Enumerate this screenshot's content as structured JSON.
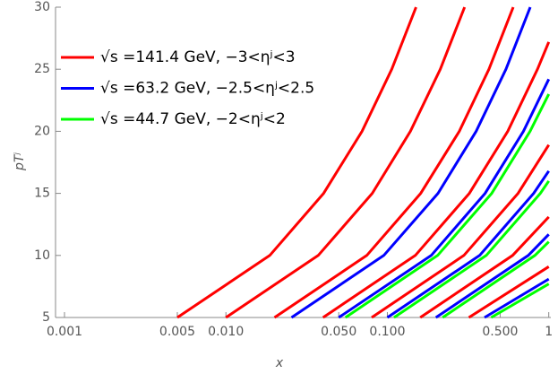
{
  "chart_data": {
    "type": "line",
    "x_label": "x",
    "y_label": "pTʲ",
    "log_x": true,
    "xlim": [
      0.00088,
      1.03
    ],
    "ylim": [
      5,
      30
    ],
    "xticks": [
      0.001,
      0.005,
      {
        "value": 0.01,
        "label": "0.010"
      },
      {
        "value": 0.05,
        "label": "0.050"
      },
      {
        "value": 0.1,
        "label": "0.100"
      },
      {
        "value": 0.5,
        "label": "0.500"
      },
      1
    ],
    "yticks": [
      5,
      10,
      15,
      20,
      25,
      30
    ],
    "legend": "upper-left",
    "series": [
      {
        "name": "√s =141.4 GeV, −3<ηʲ<3",
        "color": "#ff0000",
        "curves": [
          {
            "x": [
              0.005,
              0.0187,
              0.0403,
              0.0697,
              0.1065,
              0.1505
            ],
            "y": [
              5,
              10,
              15,
              20,
              25,
              30
            ]
          },
          {
            "x": [
              0.01,
              0.0373,
              0.0806,
              0.139,
              0.213,
              0.301
            ],
            "y": [
              5,
              10,
              15,
              20,
              25,
              30
            ]
          },
          {
            "x": [
              0.02,
              0.0746,
              0.161,
              0.279,
              0.426,
              0.602
            ],
            "y": [
              5,
              10,
              15,
              20,
              25,
              30
            ]
          },
          {
            "x": [
              0.04,
              0.149,
              0.322,
              0.557,
              0.852,
              1
            ],
            "y": [
              5,
              10,
              15,
              20,
              25,
              27.2
            ]
          },
          {
            "x": [
              0.08,
              0.298,
              0.645,
              1
            ],
            "y": [
              5,
              10,
              15,
              18.9
            ]
          },
          {
            "x": [
              0.16,
              0.597,
              1
            ],
            "y": [
              5,
              10,
              13.1
            ]
          },
          {
            "x": [
              0.32,
              1
            ],
            "y": [
              5,
              9.1
            ]
          }
        ]
      },
      {
        "name": "√s =63.2 GeV, −2.5<ηʲ<2.5",
        "color": "#0000ff",
        "curves": [
          {
            "x": [
              0.0255,
              0.0951,
              0.206,
              0.355,
              0.543,
              0.768
            ],
            "y": [
              5,
              10,
              15,
              20,
              25,
              30
            ]
          },
          {
            "x": [
              0.05,
              0.187,
              0.403,
              0.697,
              1
            ],
            "y": [
              5,
              10,
              15,
              20,
              24.2
            ]
          },
          {
            "x": [
              0.1,
              0.373,
              0.806,
              1
            ],
            "y": [
              5,
              10,
              15,
              16.8
            ]
          },
          {
            "x": [
              0.2,
              0.746,
              1
            ],
            "y": [
              5,
              10,
              11.7
            ]
          },
          {
            "x": [
              0.4,
              1
            ],
            "y": [
              5,
              8.1
            ]
          }
        ]
      },
      {
        "name": "√s =44.7 GeV, −2<ηʲ<2",
        "color": "#00ff00",
        "curves": [
          {
            "x": [
              0.055,
              0.205,
              0.443,
              0.766,
              1
            ],
            "y": [
              5,
              10,
              15,
              20,
              23.0
            ]
          },
          {
            "x": [
              0.11,
              0.41,
              0.887,
              1
            ],
            "y": [
              5,
              10,
              15,
              16.0
            ]
          },
          {
            "x": [
              0.22,
              0.821,
              1
            ],
            "y": [
              5,
              10,
              11.1
            ]
          },
          {
            "x": [
              0.44,
              1
            ],
            "y": [
              5,
              7.7
            ]
          }
        ]
      }
    ]
  }
}
